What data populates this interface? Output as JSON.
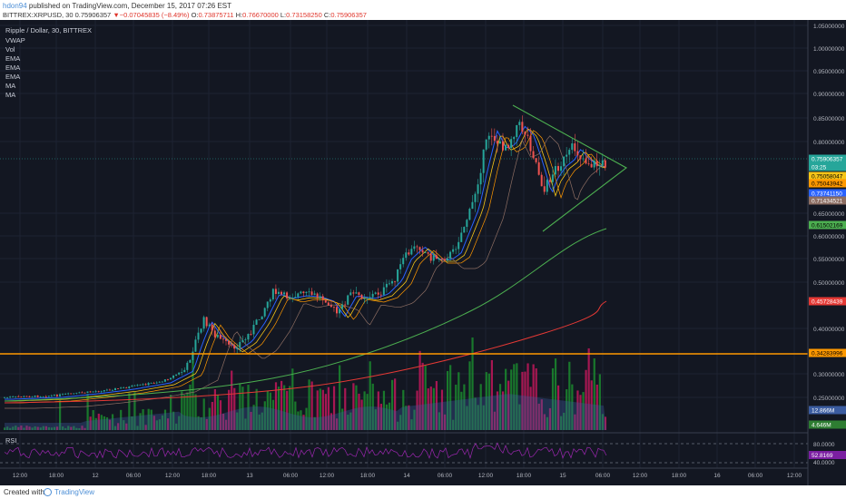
{
  "header": {
    "author": "hdon94",
    "published": " published on TradingView.com, December 15, 2017 07:26 EST",
    "symbol_line_a": "BITTREX:XRPUSD, 30  0.75906357 ",
    "symbol_line_b": "−0.07045835 (−8.49%)",
    "symbol_line_c": " O:",
    "open_value": "0.73875711",
    "high_label": " H:",
    "high_value": "0.76670000",
    "low_label": " L:",
    "low_value": "0.73158250",
    "close_label": " C:",
    "close_value": "0.75906357"
  },
  "indicators": {
    "title": "Ripple / Dollar, 30, BITTREX",
    "list": [
      "VWAP",
      "Vol",
      "EMA",
      "EMA",
      "EMA",
      "MA",
      "MA"
    ]
  },
  "price_axis": {
    "ticks": [
      "1.05000000",
      "1.00000000",
      "0.95000000",
      "0.90000000",
      "0.85000000",
      "0.80000000",
      "0.65000000",
      "0.60000000",
      "0.55000000",
      "0.50000000",
      "0.40000000",
      "0.30000000",
      "0.25000000"
    ],
    "labels": [
      {
        "text": "0.75906357",
        "color": "#26a69a",
        "fg": "#ffffff"
      },
      {
        "text": "03:25",
        "color": "#26a69a",
        "fg": "#ffffff"
      },
      {
        "text": "0.75058047",
        "color": "#f5c518",
        "fg": "#000000"
      },
      {
        "text": "0.75043942",
        "color": "#ff9800",
        "fg": "#000000"
      },
      {
        "text": "0.73741150",
        "color": "#2962ff",
        "fg": "#ffffff"
      },
      {
        "text": "0.71434521",
        "color": "#8d6e63",
        "fg": "#ffffff"
      },
      {
        "text": "0.61502169",
        "color": "#4caf50",
        "fg": "#000000"
      },
      {
        "text": "0.45728439",
        "color": "#e53935",
        "fg": "#ffffff"
      },
      {
        "text": "0.34283996",
        "color": "#ff9800",
        "fg": "#000000"
      },
      {
        "text": "12.866M",
        "color": "#3b5ca0",
        "fg": "#ffffff"
      },
      {
        "text": "4.646M",
        "color": "#2e7d32",
        "fg": "#ffffff"
      }
    ]
  },
  "rsi": {
    "label": "RSI",
    "ticks": [
      "80.0000",
      "40.0000"
    ],
    "value_label": "52.8169"
  },
  "time_axis": {
    "ticks": [
      "12:00",
      "18:00",
      "12",
      "06:00",
      "12:00",
      "18:00",
      "13",
      "06:00",
      "12:00",
      "18:00",
      "14",
      "06:00",
      "12:00",
      "18:00",
      "15",
      "06:00",
      "12:00",
      "18:00",
      "16",
      "06:00",
      "12:00"
    ]
  },
  "footer": {
    "created_with": "Created with",
    "brand": "TradingView"
  },
  "colors": {
    "background": "#131722",
    "up": "#26a69a",
    "down": "#ef5350",
    "triangle": "#4caf50",
    "support": "#ff9800"
  }
}
